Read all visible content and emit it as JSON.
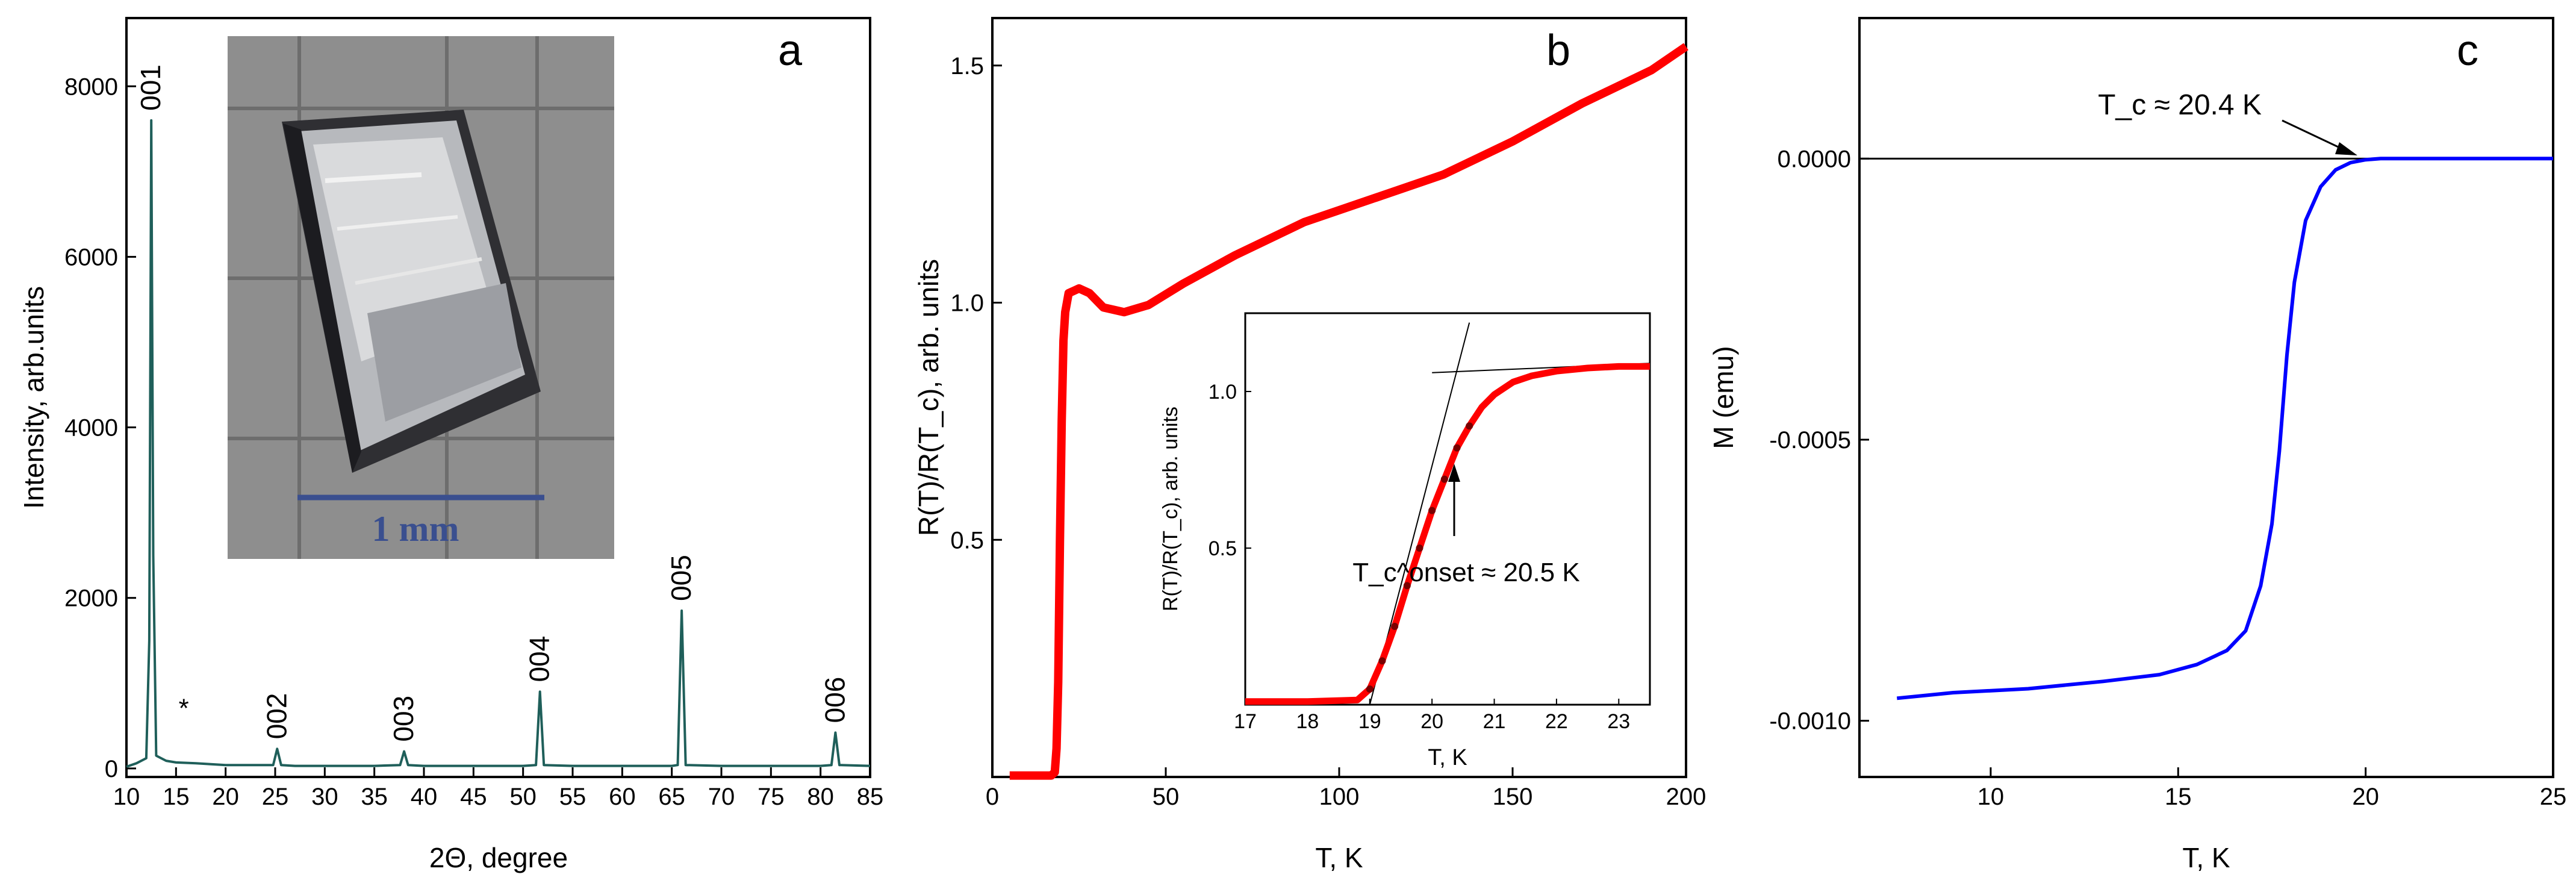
{
  "colors": {
    "xrd": "#1f5f5a",
    "resistance": "#ff0000",
    "magnetization": "#0000ff",
    "photo_background": "#8e8e8e",
    "scale_bar": "#3a4f8f"
  },
  "panels": {
    "a": {
      "letter": "a",
      "xlabel": "2Θ, degree",
      "ylabel": "Intensity, arb.units",
      "photo_scale_label": "1 mm"
    },
    "b": {
      "letter": "b",
      "xlabel": "T, K",
      "ylabel": "R(T)/R(T_c), arb. units",
      "inset": {
        "xlabel": "T, K",
        "ylabel": "R(T)/R(T_c), arb. units",
        "annotation": "T_c^onset ≈ 20.5 K"
      }
    },
    "c": {
      "letter": "c",
      "xlabel": "T, K",
      "ylabel": "M (emu)",
      "annotation": "T_c ≈ 20.4 K"
    }
  },
  "chart_data": [
    {
      "panel": "a",
      "type": "line",
      "xlim": [
        10,
        85
      ],
      "ylim": [
        -100,
        8800
      ],
      "xticks": [
        10,
        15,
        20,
        25,
        30,
        35,
        40,
        45,
        50,
        55,
        60,
        65,
        70,
        75,
        80,
        85
      ],
      "yticks": [
        0,
        2000,
        4000,
        6000,
        8000
      ],
      "peak_labels": [
        {
          "label": "001",
          "x": 12.5,
          "y": 7600
        },
        {
          "label": "*",
          "x": 14.9,
          "y": 180
        },
        {
          "label": "002",
          "x": 25.2,
          "y": 230
        },
        {
          "label": "003",
          "x": 38.0,
          "y": 200
        },
        {
          "label": "004",
          "x": 51.7,
          "y": 900
        },
        {
          "label": "005",
          "x": 66.0,
          "y": 1850
        },
        {
          "label": "006",
          "x": 81.5,
          "y": 420
        }
      ],
      "series": [
        {
          "x": [
            10,
            11,
            12,
            12.3,
            12.5,
            12.7,
            13,
            14,
            15,
            17,
            20,
            24,
            24.8,
            25.2,
            25.6,
            27,
            30,
            35,
            37.6,
            38.0,
            38.4,
            40,
            45,
            50,
            51.3,
            51.7,
            52.1,
            55,
            60,
            65,
            65.6,
            66.0,
            66.4,
            70,
            75,
            80,
            81.1,
            81.5,
            81.9,
            85
          ],
          "y": [
            20,
            60,
            120,
            1500,
            7600,
            2500,
            150,
            90,
            70,
            60,
            40,
            40,
            40,
            230,
            40,
            30,
            30,
            30,
            40,
            200,
            40,
            30,
            30,
            30,
            40,
            900,
            40,
            30,
            30,
            30,
            40,
            1850,
            40,
            30,
            30,
            30,
            40,
            420,
            40,
            30
          ]
        }
      ]
    },
    {
      "panel": "b",
      "type": "line",
      "xlim": [
        0,
        200
      ],
      "ylim": [
        0,
        1.6
      ],
      "xticks": [
        0,
        50,
        100,
        150,
        200
      ],
      "yticks": [
        0.5,
        1.0,
        1.5
      ],
      "series": [
        {
          "x": [
            5,
            10,
            17,
            18,
            18.5,
            19,
            19.5,
            20,
            20.5,
            21,
            22,
            25,
            28,
            32,
            38,
            45,
            55,
            70,
            90,
            110,
            130,
            150,
            170,
            190,
            200
          ],
          "y": [
            0.003,
            0.003,
            0.003,
            0.01,
            0.06,
            0.2,
            0.5,
            0.75,
            0.92,
            0.98,
            1.02,
            1.03,
            1.02,
            0.99,
            0.98,
            0.995,
            1.04,
            1.1,
            1.17,
            1.22,
            1.27,
            1.34,
            1.42,
            1.49,
            1.54
          ]
        }
      ]
    },
    {
      "panel": "b-inset",
      "type": "line",
      "xlim": [
        17,
        23.5
      ],
      "ylim": [
        0,
        1.25
      ],
      "xticks": [
        17,
        18,
        19,
        20,
        21,
        22,
        23
      ],
      "yticks": [
        0.5,
        1.0
      ],
      "series": [
        {
          "x": [
            17,
            18,
            18.8,
            19.0,
            19.2,
            19.4,
            19.6,
            19.8,
            20.0,
            20.2,
            20.4,
            20.6,
            20.8,
            21.0,
            21.3,
            21.6,
            22.0,
            22.5,
            23.0,
            23.5
          ],
          "y": [
            0.01,
            0.01,
            0.015,
            0.05,
            0.14,
            0.25,
            0.38,
            0.5,
            0.62,
            0.72,
            0.82,
            0.89,
            0.95,
            0.99,
            1.03,
            1.05,
            1.065,
            1.075,
            1.08,
            1.08
          ]
        }
      ],
      "guide_lines": [
        {
          "x": [
            19.0,
            20.6
          ],
          "y": [
            0.0,
            1.22
          ]
        },
        {
          "x": [
            20.0,
            23.5
          ],
          "y": [
            1.06,
            1.09
          ]
        }
      ]
    },
    {
      "panel": "c",
      "type": "line",
      "xlim": [
        6.5,
        25
      ],
      "ylim": [
        -0.0011,
        0.00025
      ],
      "xticks": [
        10,
        15,
        20,
        25
      ],
      "yticks": [
        0.0,
        -0.0005,
        -0.001
      ],
      "ytick_labels": [
        "0.0000",
        "-0.0005",
        "-0.0010"
      ],
      "series": [
        {
          "x": [
            7.5,
            9,
            11,
            13,
            14.5,
            15.5,
            16.3,
            16.8,
            17.2,
            17.5,
            17.7,
            17.9,
            18.1,
            18.4,
            18.8,
            19.2,
            19.6,
            20.0,
            20.4,
            21,
            25
          ],
          "y": [
            -0.00096,
            -0.00095,
            -0.000943,
            -0.00093,
            -0.000918,
            -0.0009,
            -0.000875,
            -0.00084,
            -0.00076,
            -0.00065,
            -0.00052,
            -0.00035,
            -0.00022,
            -0.00011,
            -5e-05,
            -2e-05,
            -7e-06,
            -2e-06,
            0.0,
            0.0,
            0.0
          ]
        }
      ],
      "reference_line": {
        "y": 0.0
      }
    }
  ]
}
